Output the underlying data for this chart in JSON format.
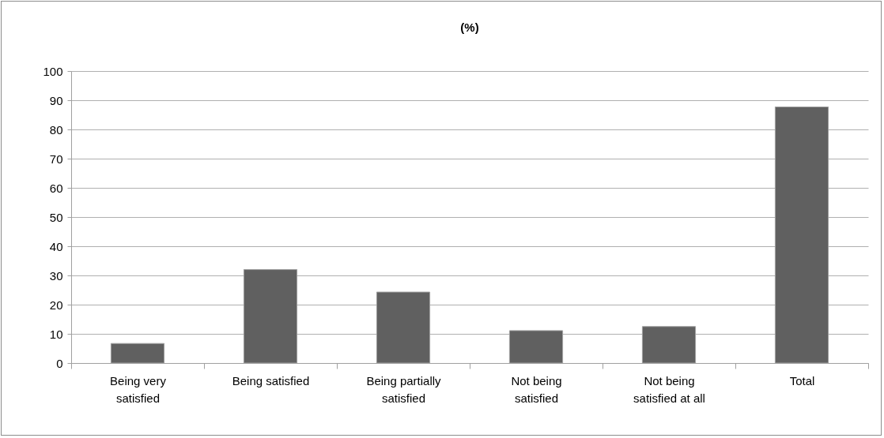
{
  "chart_data": {
    "type": "bar",
    "title": "(%)",
    "categories": [
      "Being very satisfied",
      "Being satisfied",
      "Being partially satisfied",
      "Not being satisfied",
      "Not being satisfied at all",
      "Total"
    ],
    "values": [
      6.7,
      32.0,
      24.3,
      11.1,
      12.5,
      87.7
    ],
    "color": "#606060",
    "ylim": [
      0,
      100
    ],
    "yticks": [
      0,
      10,
      20,
      30,
      40,
      50,
      60,
      70,
      80,
      90,
      100
    ],
    "grid": "y"
  }
}
